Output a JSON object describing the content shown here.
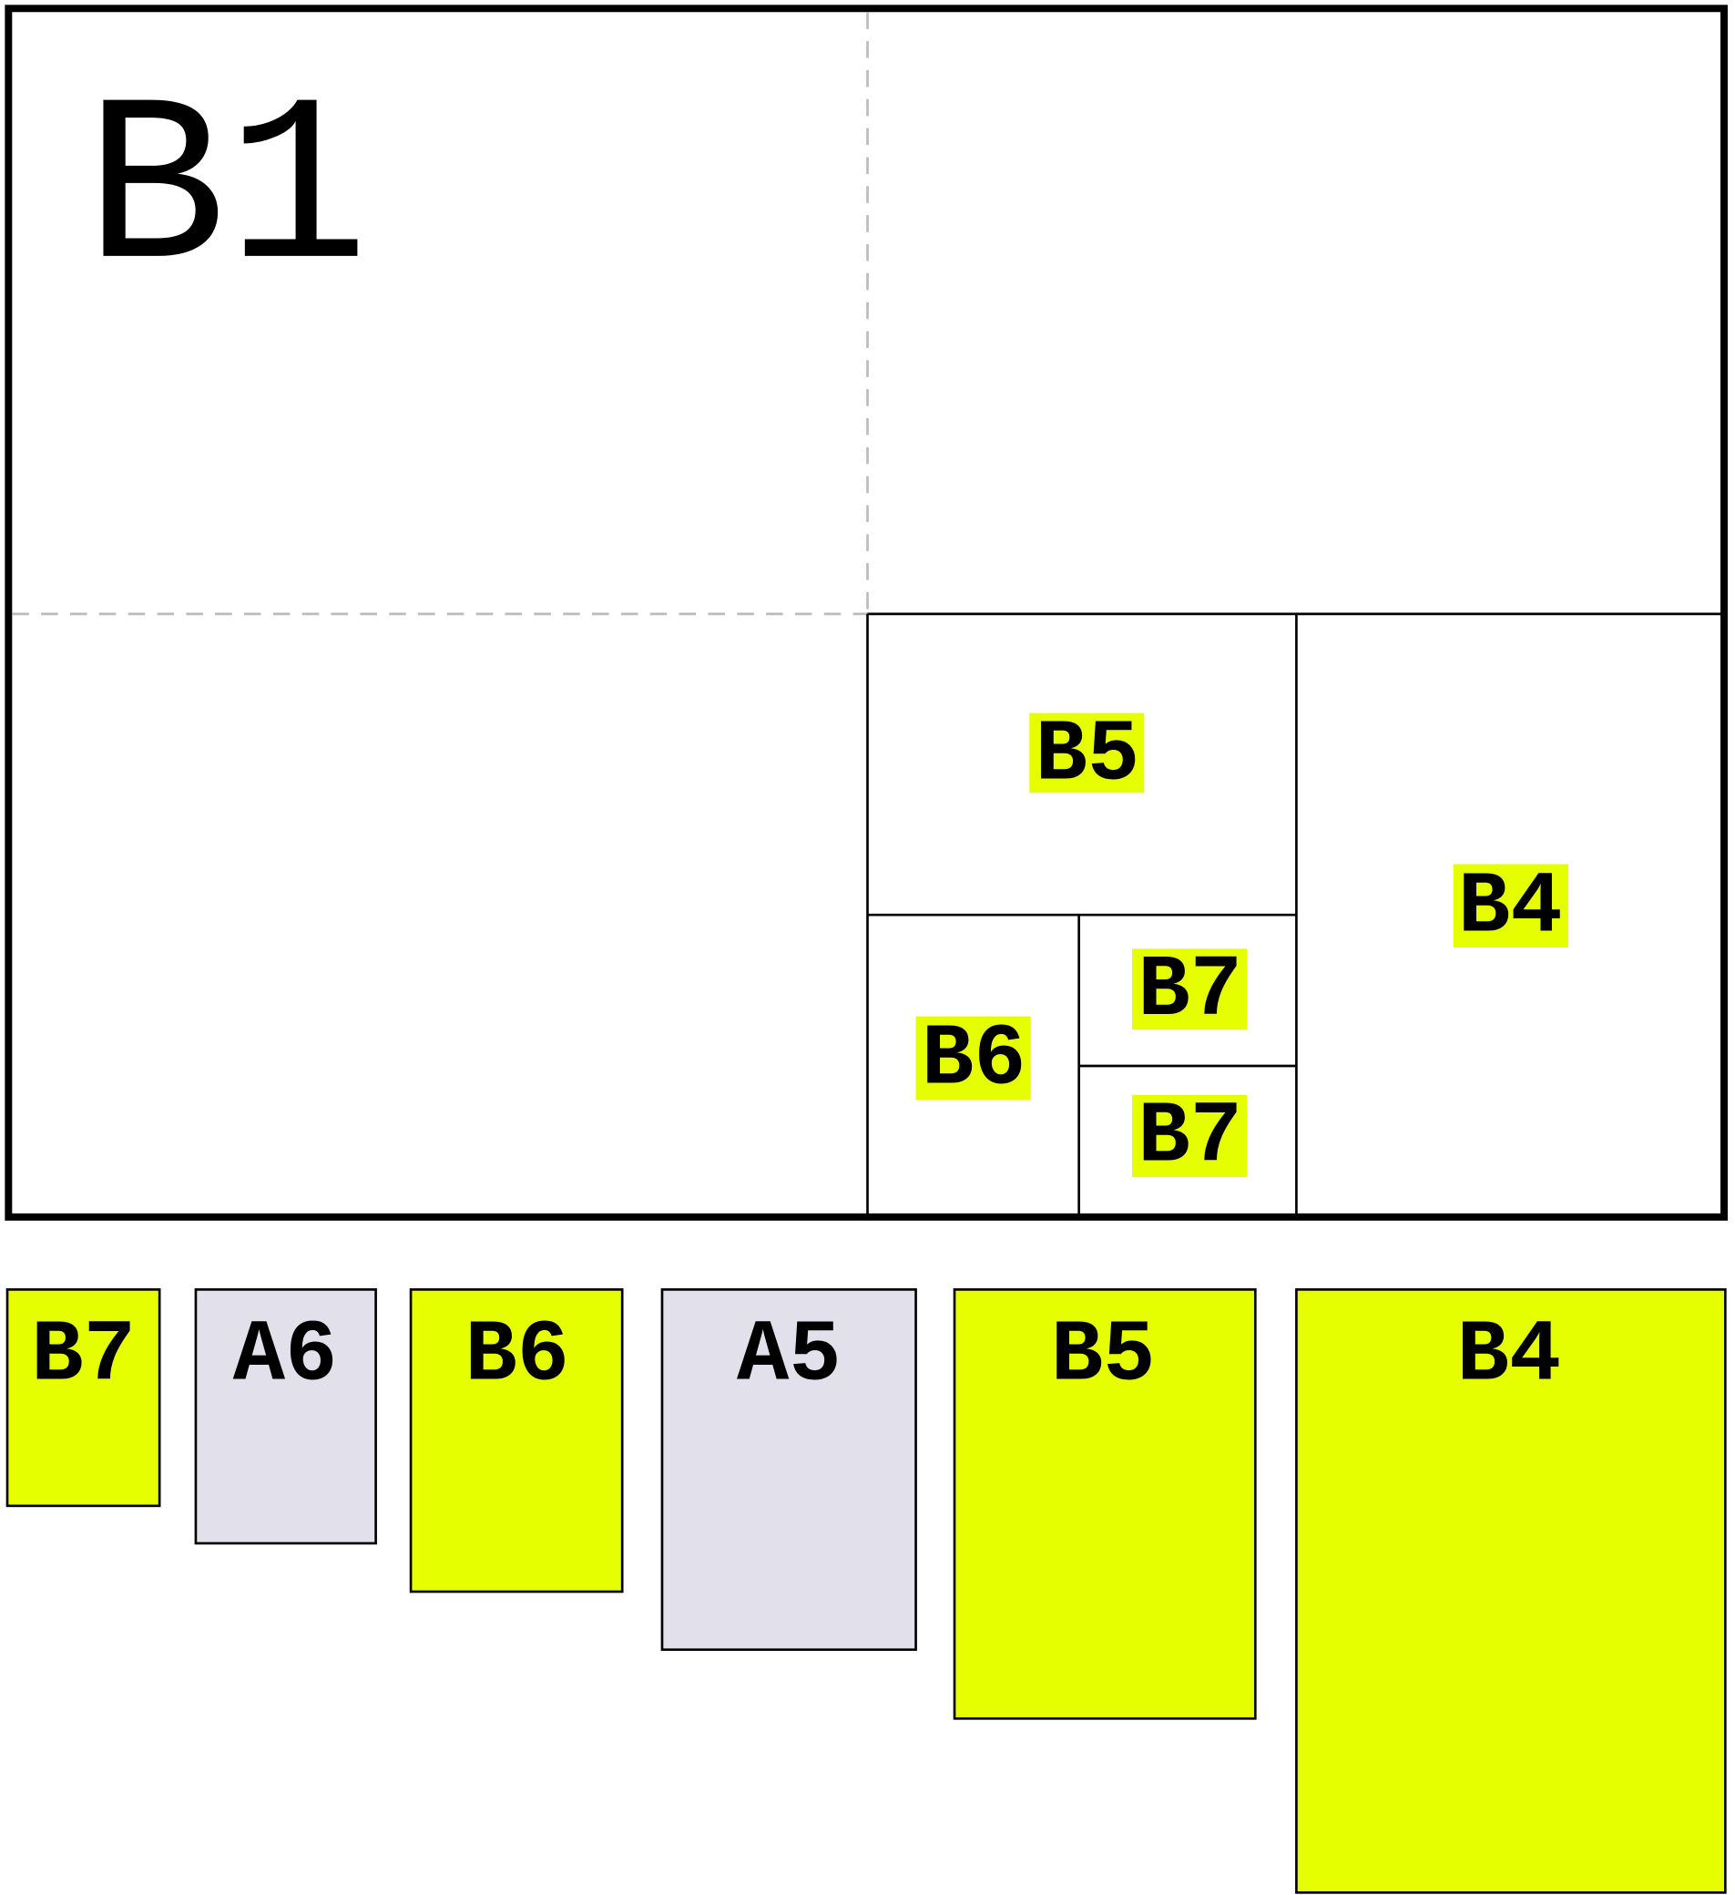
{
  "sheet": {
    "title": "B1",
    "parts": [
      "B5",
      "B4",
      "B6",
      "B7",
      "B7"
    ]
  },
  "sizes": [
    "B7",
    "A6",
    "B6",
    "A5",
    "B5",
    "B4"
  ]
}
